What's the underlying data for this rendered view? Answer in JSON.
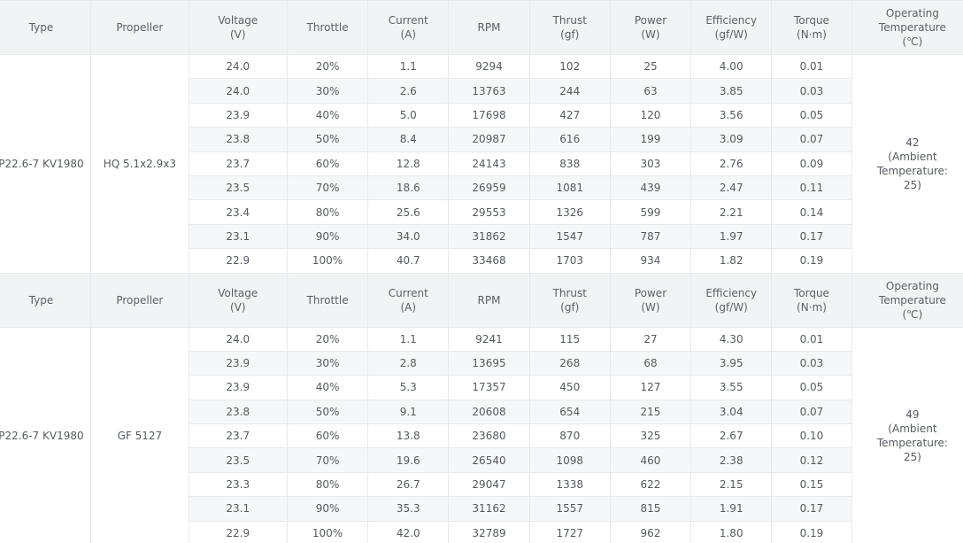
{
  "headers": [
    {
      "key": "type",
      "lines": [
        "Type"
      ]
    },
    {
      "key": "propeller",
      "lines": [
        "Propeller"
      ]
    },
    {
      "key": "voltage",
      "lines": [
        "Voltage",
        "(V)"
      ]
    },
    {
      "key": "throttle",
      "lines": [
        "Throttle"
      ]
    },
    {
      "key": "current",
      "lines": [
        "Current",
        "(A)"
      ]
    },
    {
      "key": "rpm",
      "lines": [
        "RPM"
      ]
    },
    {
      "key": "thrust",
      "lines": [
        "Thrust",
        "(gf)"
      ]
    },
    {
      "key": "power",
      "lines": [
        "Power",
        "(W)"
      ]
    },
    {
      "key": "efficiency",
      "lines": [
        "Efficiency",
        "(gf/W)"
      ]
    },
    {
      "key": "torque",
      "lines": [
        "Torque",
        "(N·m)"
      ]
    },
    {
      "key": "temperature",
      "lines": [
        "Operating",
        "Temperature",
        "(℃)"
      ]
    }
  ],
  "sections": [
    {
      "type": "P22.6-7 KV1980",
      "propeller": "HQ 5.1x2.9x3",
      "temperature": [
        "42",
        "(Ambient",
        "Temperature:",
        "25)"
      ],
      "rows": [
        [
          "24.0",
          "20%",
          "1.1",
          "9294",
          "102",
          "25",
          "4.00",
          "0.01"
        ],
        [
          "24.0",
          "30%",
          "2.6",
          "13763",
          "244",
          "63",
          "3.85",
          "0.03"
        ],
        [
          "23.9",
          "40%",
          "5.0",
          "17698",
          "427",
          "120",
          "3.56",
          "0.05"
        ],
        [
          "23.8",
          "50%",
          "8.4",
          "20987",
          "616",
          "199",
          "3.09",
          "0.07"
        ],
        [
          "23.7",
          "60%",
          "12.8",
          "24143",
          "838",
          "303",
          "2.76",
          "0.09"
        ],
        [
          "23.5",
          "70%",
          "18.6",
          "26959",
          "1081",
          "439",
          "2.47",
          "0.11"
        ],
        [
          "23.4",
          "80%",
          "25.6",
          "29553",
          "1326",
          "599",
          "2.21",
          "0.14"
        ],
        [
          "23.1",
          "90%",
          "34.0",
          "31862",
          "1547",
          "787",
          "1.97",
          "0.17"
        ],
        [
          "22.9",
          "100%",
          "40.7",
          "33468",
          "1703",
          "934",
          "1.82",
          "0.19"
        ]
      ]
    },
    {
      "type": "P22.6-7 KV1980",
      "propeller": "GF 5127",
      "temperature": [
        "49",
        "(Ambient",
        "Temperature:",
        "25)"
      ],
      "rows": [
        [
          "24.0",
          "20%",
          "1.1",
          "9241",
          "115",
          "27",
          "4.30",
          "0.01"
        ],
        [
          "23.9",
          "30%",
          "2.8",
          "13695",
          "268",
          "68",
          "3.95",
          "0.03"
        ],
        [
          "23.9",
          "40%",
          "5.3",
          "17357",
          "450",
          "127",
          "3.55",
          "0.05"
        ],
        [
          "23.8",
          "50%",
          "9.1",
          "20608",
          "654",
          "215",
          "3.04",
          "0.07"
        ],
        [
          "23.7",
          "60%",
          "13.8",
          "23680",
          "870",
          "325",
          "2.67",
          "0.10"
        ],
        [
          "23.5",
          "70%",
          "19.6",
          "26540",
          "1098",
          "460",
          "2.38",
          "0.12"
        ],
        [
          "23.3",
          "80%",
          "26.7",
          "29047",
          "1338",
          "622",
          "2.15",
          "0.15"
        ],
        [
          "23.1",
          "90%",
          "35.3",
          "31162",
          "1557",
          "815",
          "1.91",
          "0.17"
        ],
        [
          "22.9",
          "100%",
          "42.0",
          "32789",
          "1727",
          "962",
          "1.80",
          "0.19"
        ]
      ]
    }
  ]
}
